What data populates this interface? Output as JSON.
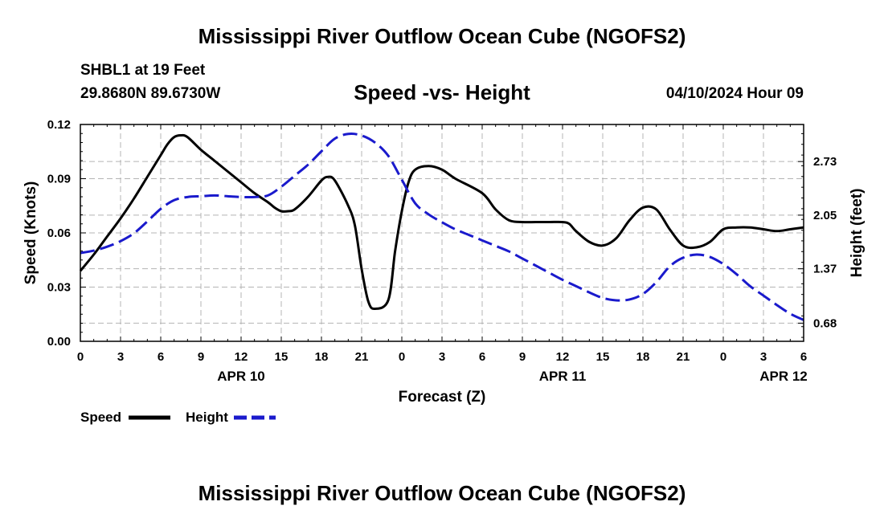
{
  "title": "Mississippi River Outflow Ocean Cube (NGOFS2)",
  "title_repeat": "Mississippi River Outflow Ocean Cube (NGOFS2)",
  "station": "SHBL1 at 19 Feet",
  "coords": "29.8680N  89.6730W",
  "subtitle": "Speed -vs- Height",
  "datetime": "04/10/2024 Hour 09",
  "colors": {
    "speed": "#000000",
    "height": "#1a1acc",
    "grid": "#b4b4b4"
  },
  "chart_data": {
    "type": "line",
    "title": "Speed -vs- Height",
    "xlabel": "Forecast (Z)",
    "ylabel": "Speed (Knots)",
    "y2label": "Height (feet)",
    "x_range_hours": [
      0,
      54
    ],
    "x_tick_step_hours": 3,
    "x_tick_labels": [
      "0",
      "3",
      "6",
      "9",
      "12",
      "15",
      "18",
      "21",
      "0",
      "3",
      "6",
      "9",
      "12",
      "15",
      "18",
      "21",
      "0",
      "3",
      "6"
    ],
    "date_labels": [
      {
        "label": "APR 10",
        "hour": 12
      },
      {
        "label": "APR 11",
        "hour": 36
      },
      {
        "label": "APR 12",
        "hour": 52.5
      }
    ],
    "ylim": [
      0,
      0.12
    ],
    "y_ticks": [
      0,
      0.03,
      0.06,
      0.09,
      0.12
    ],
    "y_tick_labels": [
      "0.00",
      "0.03",
      "0.06",
      "0.09",
      "0.12"
    ],
    "y2lim": [
      0.45,
      3.2
    ],
    "y2_ticks": [
      0.68,
      1.37,
      2.05,
      2.73
    ],
    "y2_tick_labels": [
      "0.68",
      "1.37",
      "2.05",
      "2.73"
    ],
    "grid": true,
    "legend": [
      {
        "name": "Speed",
        "style": "solid"
      },
      {
        "name": "Height",
        "style": "dashed"
      }
    ],
    "series": [
      {
        "name": "Speed",
        "axis": "left",
        "style": "solid",
        "x": [
          0,
          1,
          2,
          3,
          4,
          5,
          6,
          6.5,
          7,
          7.5,
          8,
          9,
          10,
          11,
          12,
          13,
          14,
          14.5,
          15,
          15.5,
          16,
          17,
          18,
          18.5,
          19,
          20,
          20.5,
          21,
          21.5,
          22,
          23,
          23.5,
          24,
          24.5,
          25,
          26,
          27,
          28,
          30,
          31,
          32,
          33,
          34,
          35,
          36,
          36.5,
          37,
          38,
          39,
          40,
          41,
          42,
          43,
          44,
          45,
          46,
          47,
          48,
          49,
          50,
          51,
          52,
          53,
          54
        ],
        "values": [
          0.039,
          0.048,
          0.058,
          0.068,
          0.079,
          0.091,
          0.103,
          0.109,
          0.113,
          0.114,
          0.113,
          0.106,
          0.1,
          0.094,
          0.088,
          0.082,
          0.077,
          0.074,
          0.072,
          0.072,
          0.073,
          0.08,
          0.089,
          0.091,
          0.089,
          0.075,
          0.064,
          0.04,
          0.022,
          0.018,
          0.023,
          0.05,
          0.072,
          0.088,
          0.095,
          0.097,
          0.095,
          0.09,
          0.082,
          0.073,
          0.067,
          0.066,
          0.066,
          0.066,
          0.066,
          0.065,
          0.061,
          0.055,
          0.053,
          0.057,
          0.067,
          0.074,
          0.073,
          0.062,
          0.053,
          0.052,
          0.055,
          0.062,
          0.063,
          0.063,
          0.062,
          0.061,
          0.062,
          0.063
        ]
      },
      {
        "name": "Height",
        "axis": "right",
        "style": "dashed",
        "x": [
          0,
          1,
          2,
          3,
          4,
          5,
          6,
          7,
          8,
          9,
          10,
          11,
          12,
          13,
          14,
          15,
          16,
          17,
          18,
          19,
          20,
          21,
          22,
          23,
          24,
          25,
          26,
          27,
          28,
          29,
          30,
          31,
          32,
          33,
          34,
          35,
          36,
          37,
          38,
          39,
          40,
          41,
          42,
          43,
          44,
          45,
          46,
          47,
          48,
          49,
          50,
          51,
          52,
          53,
          54
        ],
        "values": [
          1.57,
          1.6,
          1.65,
          1.72,
          1.82,
          1.97,
          2.13,
          2.24,
          2.28,
          2.29,
          2.3,
          2.29,
          2.28,
          2.28,
          2.3,
          2.41,
          2.55,
          2.69,
          2.86,
          3.02,
          3.08,
          3.06,
          2.97,
          2.8,
          2.5,
          2.2,
          2.06,
          1.96,
          1.87,
          1.8,
          1.73,
          1.66,
          1.59,
          1.5,
          1.41,
          1.32,
          1.23,
          1.15,
          1.07,
          1,
          0.97,
          0.98,
          1.05,
          1.2,
          1.4,
          1.51,
          1.55,
          1.52,
          1.43,
          1.3,
          1.15,
          1.03,
          0.91,
          0.8,
          0.72
        ]
      }
    ]
  }
}
